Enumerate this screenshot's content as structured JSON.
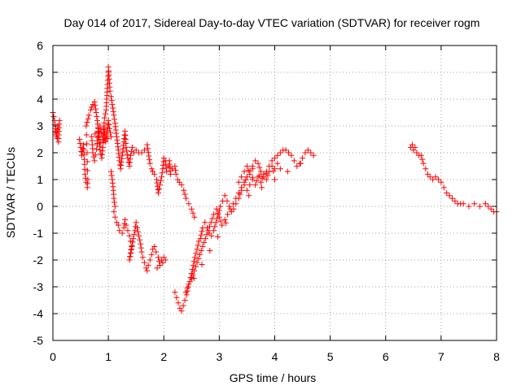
{
  "chart_data": {
    "type": "scatter",
    "title": "Day 014 of 2017, Sidereal Day-to-day VTEC variation (SDTVAR) for receiver rogm",
    "xlabel": "GPS time / hours",
    "ylabel": "SDTVAR / TECUs",
    "xlim": [
      0,
      8
    ],
    "ylim": [
      -5,
      6
    ],
    "x_ticks": [
      "0",
      "1",
      "2",
      "3",
      "4",
      "5",
      "6",
      "7",
      "8"
    ],
    "y_ticks": [
      "-5",
      "-4",
      "-3",
      "-2",
      "-1",
      "0",
      "1",
      "2",
      "3",
      "4",
      "5",
      "6"
    ],
    "grid": true,
    "marker": "+",
    "colors": {
      "series": "#ff0000",
      "grid": "#a0a0a0",
      "axis": "#000000"
    },
    "series": [
      {
        "name": "SDTVAR",
        "segments": [
          [
            [
              0.0,
              3.5
            ],
            [
              0.03,
              3.2
            ],
            [
              0.05,
              2.9
            ],
            [
              0.07,
              2.6
            ],
            [
              0.09,
              3.0
            ],
            [
              0.12,
              3.2
            ],
            [
              0.1,
              2.4
            ],
            [
              0.04,
              2.8
            ]
          ],
          [
            [
              0.48,
              2.5
            ],
            [
              0.5,
              2.2
            ],
            [
              0.52,
              1.9
            ],
            [
              0.55,
              2.3
            ],
            [
              0.58,
              1.2
            ],
            [
              0.6,
              0.9
            ],
            [
              0.62,
              0.7
            ],
            [
              0.63,
              1.0
            ],
            [
              0.6,
              3.0
            ],
            [
              0.65,
              3.4
            ],
            [
              0.68,
              3.6
            ],
            [
              0.7,
              3.7
            ],
            [
              0.72,
              3.8
            ],
            [
              0.75,
              3.9
            ],
            [
              0.78,
              3.5
            ],
            [
              0.8,
              3.2
            ],
            [
              0.82,
              2.8
            ],
            [
              0.7,
              2.6
            ],
            [
              0.72,
              2.0
            ],
            [
              0.75,
              1.7
            ],
            [
              0.85,
              3.0
            ],
            [
              0.88,
              2.7
            ],
            [
              0.9,
              2.5
            ],
            [
              0.92,
              3.0
            ],
            [
              0.95,
              2.4
            ],
            [
              0.98,
              2.8
            ],
            [
              1.0,
              3.2
            ],
            [
              1.02,
              2.9
            ],
            [
              1.05,
              2.6
            ],
            [
              0.8,
              2.3
            ],
            [
              0.82,
              2.9
            ],
            [
              0.85,
              2.1
            ],
            [
              0.88,
              1.8
            ],
            [
              0.9,
              2.2
            ],
            [
              0.93,
              3.3
            ],
            [
              0.96,
              3.6
            ],
            [
              0.98,
              4.4
            ],
            [
              1.0,
              5.0
            ],
            [
              1.0,
              5.2
            ],
            [
              1.03,
              4.3
            ],
            [
              1.05,
              4.1
            ],
            [
              1.07,
              3.8
            ],
            [
              1.1,
              3.4
            ],
            [
              1.12,
              3.1
            ],
            [
              1.15,
              2.6
            ],
            [
              1.18,
              2.1
            ],
            [
              1.2,
              1.7
            ],
            [
              1.22,
              1.4
            ],
            [
              1.25,
              1.9
            ],
            [
              1.28,
              2.4
            ],
            [
              1.3,
              2.8
            ],
            [
              1.32,
              2.2
            ],
            [
              1.35,
              1.8
            ],
            [
              1.38,
              1.5
            ],
            [
              1.4,
              1.9
            ],
            [
              1.43,
              2.2
            ],
            [
              1.46,
              2.0
            ],
            [
              1.5,
              2.1
            ],
            [
              1.55,
              2.0
            ],
            [
              1.6,
              2.0
            ],
            [
              1.65,
              2.1
            ],
            [
              1.7,
              2.3
            ],
            [
              1.75,
              1.6
            ],
            [
              1.78,
              1.4
            ],
            [
              1.8,
              1.3
            ],
            [
              1.83,
              1.2
            ],
            [
              1.87,
              1.0
            ],
            [
              1.9,
              0.5
            ],
            [
              1.93,
              0.8
            ],
            [
              1.96,
              1.1
            ],
            [
              1.98,
              1.4
            ],
            [
              2.0,
              1.8
            ],
            [
              2.03,
              1.7
            ],
            [
              2.05,
              1.3
            ],
            [
              2.08,
              1.5
            ],
            [
              2.1,
              1.7
            ],
            [
              2.12,
              1.2
            ],
            [
              2.15,
              1.4
            ],
            [
              2.2,
              1.5
            ],
            [
              2.22,
              1.2
            ],
            [
              2.25,
              1.0
            ],
            [
              2.28,
              0.9
            ],
            [
              2.32,
              0.8
            ],
            [
              2.36,
              0.6
            ],
            [
              2.4,
              0.3
            ],
            [
              2.45,
              0.1
            ],
            [
              2.5,
              -0.1
            ],
            [
              2.55,
              -0.4
            ]
          ],
          [
            [
              1.05,
              1.3
            ],
            [
              1.07,
              1.0
            ],
            [
              1.09,
              0.6
            ],
            [
              1.1,
              0.3
            ],
            [
              1.12,
              0.0
            ],
            [
              1.1,
              -0.2
            ],
            [
              1.12,
              -0.4
            ],
            [
              1.15,
              -0.6
            ],
            [
              1.18,
              -0.7
            ],
            [
              1.2,
              -0.9
            ],
            [
              1.25,
              -1.0
            ],
            [
              1.28,
              -0.8
            ],
            [
              1.3,
              -0.5
            ],
            [
              1.32,
              -0.7
            ],
            [
              1.35,
              -0.9
            ],
            [
              1.38,
              -1.1
            ],
            [
              1.4,
              -1.3
            ],
            [
              1.42,
              -1.5
            ],
            [
              1.38,
              -2.0
            ],
            [
              1.45,
              -1.2
            ],
            [
              1.48,
              -0.9
            ],
            [
              1.5,
              -0.6
            ],
            [
              1.52,
              -0.8
            ],
            [
              1.55,
              -1.1
            ],
            [
              1.58,
              -1.4
            ],
            [
              1.6,
              -1.7
            ],
            [
              1.62,
              -1.9
            ],
            [
              1.65,
              -2.1
            ],
            [
              1.68,
              -2.3
            ],
            [
              1.7,
              -2.4
            ],
            [
              1.72,
              -2.2
            ],
            [
              1.75,
              -2.0
            ],
            [
              1.78,
              -1.8
            ],
            [
              1.8,
              -1.6
            ],
            [
              1.83,
              -1.5
            ],
            [
              1.86,
              -1.7
            ],
            [
              1.9,
              -1.9
            ],
            [
              1.93,
              -2.2
            ],
            [
              1.96,
              -2.0
            ],
            [
              2.0,
              -1.9
            ],
            [
              2.03,
              -2.0
            ],
            [
              1.88,
              -2.3
            ]
          ],
          [
            [
              2.2,
              -3.2
            ],
            [
              2.23,
              -3.4
            ],
            [
              2.26,
              -3.6
            ],
            [
              2.29,
              -3.8
            ],
            [
              2.32,
              -3.9
            ],
            [
              2.35,
              -3.7
            ],
            [
              2.38,
              -3.5
            ],
            [
              2.41,
              -3.3
            ],
            [
              2.44,
              -3.0
            ],
            [
              2.47,
              -2.8
            ],
            [
              2.5,
              -2.5
            ],
            [
              2.53,
              -2.2
            ],
            [
              2.56,
              -1.9
            ],
            [
              2.6,
              -1.6
            ],
            [
              2.63,
              -1.3
            ],
            [
              2.66,
              -1.2
            ],
            [
              2.7,
              -0.8
            ],
            [
              2.74,
              -0.6
            ],
            [
              2.78,
              -0.8
            ],
            [
              2.82,
              -1.0
            ],
            [
              2.86,
              -1.1
            ],
            [
              2.9,
              -0.9
            ],
            [
              2.94,
              -0.6
            ],
            [
              2.98,
              -0.3
            ],
            [
              3.02,
              0.0
            ],
            [
              3.06,
              0.2
            ],
            [
              3.1,
              0.4
            ],
            [
              3.14,
              0.2
            ],
            [
              3.18,
              0.0
            ],
            [
              3.22,
              -0.2
            ],
            [
              3.26,
              -0.1
            ],
            [
              2.4,
              -3.2
            ],
            [
              2.45,
              -2.9
            ],
            [
              2.5,
              -2.7
            ],
            [
              2.55,
              -2.4
            ],
            [
              2.6,
              -2.1
            ],
            [
              2.65,
              -1.8
            ],
            [
              2.7,
              -1.5
            ],
            [
              2.75,
              -1.2
            ],
            [
              2.8,
              -0.9
            ],
            [
              2.85,
              -0.6
            ],
            [
              2.9,
              -0.3
            ],
            [
              2.95,
              -0.1
            ],
            [
              3.0,
              -0.4
            ],
            [
              3.05,
              -0.7
            ],
            [
              3.1,
              -0.5
            ],
            [
              3.15,
              -0.3
            ],
            [
              3.2,
              -0.1
            ],
            [
              3.25,
              0.1
            ],
            [
              3.3,
              0.3
            ],
            [
              3.35,
              0.5
            ],
            [
              3.4,
              0.7
            ],
            [
              3.45,
              0.9
            ],
            [
              3.5,
              1.1
            ],
            [
              3.55,
              1.3
            ],
            [
              3.6,
              1.5
            ],
            [
              3.65,
              1.7
            ],
            [
              3.7,
              1.6
            ],
            [
              3.75,
              1.3
            ],
            [
              3.8,
              1.1
            ],
            [
              3.85,
              1.3
            ],
            [
              3.9,
              1.5
            ],
            [
              3.95,
              1.7
            ],
            [
              4.0,
              1.8
            ],
            [
              4.05,
              1.9
            ],
            [
              4.1,
              2.0
            ],
            [
              4.15,
              2.1
            ],
            [
              4.2,
              2.1
            ],
            [
              4.25,
              2.0
            ],
            [
              4.3,
              1.9
            ],
            [
              4.35,
              1.7
            ],
            [
              4.4,
              1.5
            ],
            [
              4.45,
              1.6
            ],
            [
              4.5,
              1.8
            ],
            [
              4.55,
              2.0
            ],
            [
              4.6,
              2.1
            ],
            [
              4.65,
              2.0
            ],
            [
              4.7,
              1.9
            ],
            [
              3.3,
              0.1
            ],
            [
              3.35,
              0.3
            ],
            [
              3.4,
              0.6
            ],
            [
              3.45,
              0.8
            ],
            [
              3.5,
              0.6
            ],
            [
              3.55,
              0.8
            ],
            [
              3.6,
              1.0
            ],
            [
              3.65,
              0.8
            ],
            [
              3.7,
              1.1
            ],
            [
              3.75,
              0.9
            ],
            [
              3.8,
              1.2
            ],
            [
              3.85,
              1.0
            ],
            [
              3.9,
              1.3
            ],
            [
              3.95,
              1.5
            ],
            [
              4.0,
              1.4
            ],
            [
              4.05,
              1.6
            ],
            [
              4.1,
              1.4
            ],
            [
              3.35,
              0.9
            ],
            [
              3.4,
              1.1
            ],
            [
              3.45,
              1.3
            ],
            [
              3.5,
              1.5
            ],
            [
              3.55,
              1.2
            ],
            [
              3.6,
              1.4
            ]
          ],
          [
            [
              6.45,
              2.2
            ],
            [
              6.48,
              2.3
            ],
            [
              6.5,
              2.1
            ],
            [
              6.53,
              2.2
            ],
            [
              6.56,
              2.0
            ],
            [
              6.6,
              1.9
            ],
            [
              6.64,
              1.9
            ],
            [
              6.68,
              1.6
            ],
            [
              6.72,
              1.4
            ],
            [
              6.76,
              1.2
            ],
            [
              6.8,
              1.1
            ],
            [
              6.85,
              1.0
            ],
            [
              6.9,
              1.1
            ],
            [
              6.95,
              1.0
            ],
            [
              7.0,
              0.9
            ],
            [
              7.05,
              0.7
            ],
            [
              7.1,
              0.5
            ],
            [
              7.15,
              0.4
            ],
            [
              7.2,
              0.3
            ],
            [
              7.25,
              0.2
            ],
            [
              7.3,
              0.1
            ],
            [
              7.35,
              0.1
            ],
            [
              7.4,
              0.1
            ],
            [
              7.5,
              0.0
            ],
            [
              7.6,
              0.1
            ],
            [
              7.7,
              0.0
            ],
            [
              7.8,
              0.1
            ],
            [
              7.85,
              0.0
            ],
            [
              7.9,
              -0.1
            ],
            [
              7.95,
              -0.2
            ],
            [
              8.0,
              -0.2
            ]
          ]
        ]
      }
    ]
  }
}
